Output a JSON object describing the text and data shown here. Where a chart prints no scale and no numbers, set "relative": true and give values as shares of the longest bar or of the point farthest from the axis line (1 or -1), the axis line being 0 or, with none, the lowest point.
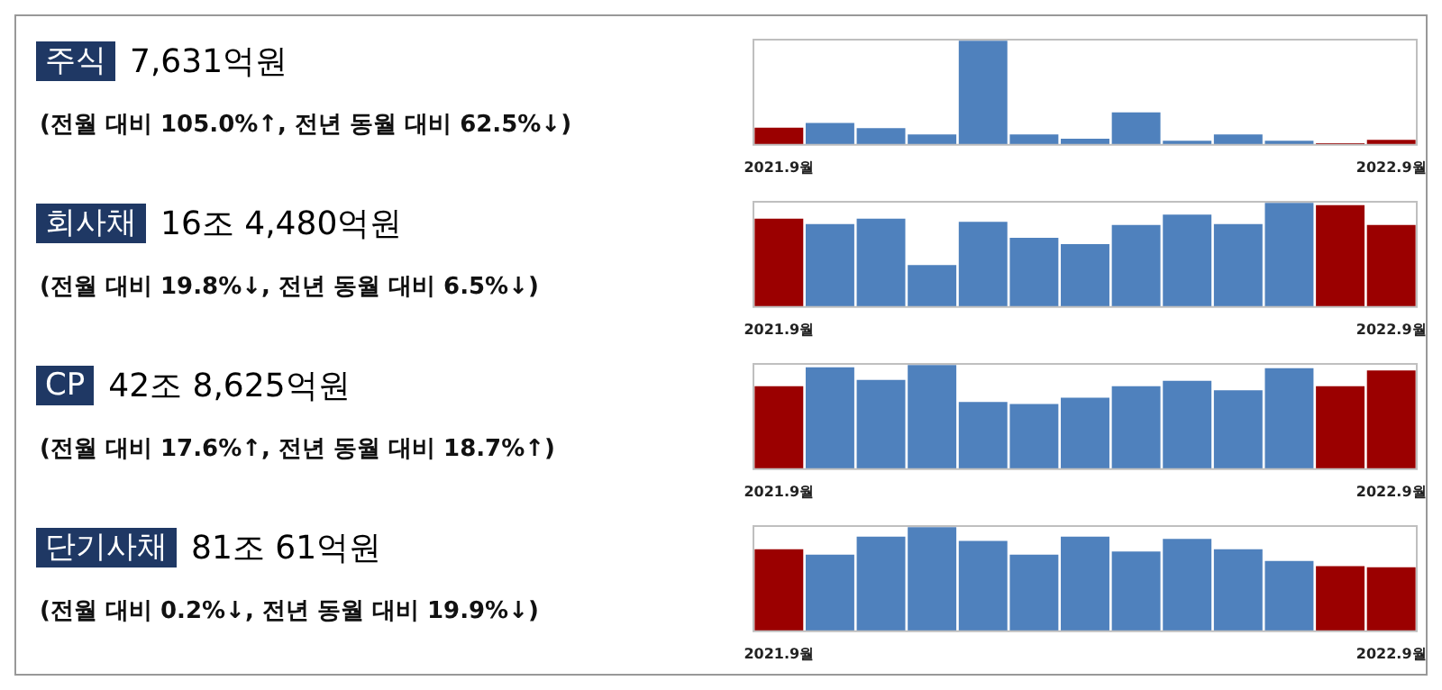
{
  "chart_data": [
    {
      "type": "bar",
      "annotations": [
        "주식",
        "7,631억원",
        "(전월 대비 105.0%↑, 전년 동월 대비 62.5%↓)"
      ],
      "categories": [
        "2021.9월",
        null,
        null,
        null,
        null,
        null,
        null,
        null,
        null,
        null,
        null,
        null,
        "2022.9월"
      ],
      "relative": true,
      "grid": false,
      "legend": false,
      "series": [
        {
          "values": [
            0.175,
            0.22,
            0.17,
            0.11,
            1,
            0.11,
            0.07,
            0.32,
            0.05,
            0.11,
            0.05,
            0.02,
            0.06
          ],
          "colors": [
            "#9b0000",
            "#4f81bd",
            "#4f81bd",
            "#4f81bd",
            "#4f81bd",
            "#4f81bd",
            "#4f81bd",
            "#4f81bd",
            "#4f81bd",
            "#4f81bd",
            "#4f81bd",
            "#9b0000",
            "#9b0000"
          ]
        }
      ]
    },
    {
      "type": "bar",
      "annotations": [
        "회사채",
        "16조 4,480억원",
        "(전월 대비 19.8%↓, 전년 동월 대비 6.5%↓)"
      ],
      "categories": [
        "2021.9월",
        null,
        null,
        null,
        null,
        null,
        null,
        null,
        null,
        null,
        null,
        null,
        "2022.9월"
      ],
      "relative": true,
      "grid": false,
      "legend": false,
      "series": [
        {
          "values": [
            0.85,
            0.8,
            0.85,
            0.41,
            0.82,
            0.67,
            0.61,
            0.79,
            0.89,
            0.8,
            1,
            0.98,
            0.79
          ],
          "colors": [
            "#9b0000",
            "#4f81bd",
            "#4f81bd",
            "#4f81bd",
            "#4f81bd",
            "#4f81bd",
            "#4f81bd",
            "#4f81bd",
            "#4f81bd",
            "#4f81bd",
            "#4f81bd",
            "#9b0000",
            "#9b0000"
          ]
        }
      ]
    },
    {
      "type": "bar",
      "annotations": [
        "CP",
        "42조 8,625억원",
        "(전월 대비 17.6%↑, 전년 동월 대비 18.7%↑)"
      ],
      "categories": [
        "2021.9월",
        null,
        null,
        null,
        null,
        null,
        null,
        null,
        null,
        null,
        null,
        null,
        "2022.9월"
      ],
      "relative": true,
      "grid": false,
      "legend": false,
      "series": [
        {
          "values": [
            0.8,
            0.98,
            0.86,
            1,
            0.65,
            0.63,
            0.69,
            0.8,
            0.85,
            0.76,
            0.97,
            0.8,
            0.95
          ],
          "colors": [
            "#9b0000",
            "#4f81bd",
            "#4f81bd",
            "#4f81bd",
            "#4f81bd",
            "#4f81bd",
            "#4f81bd",
            "#4f81bd",
            "#4f81bd",
            "#4f81bd",
            "#4f81bd",
            "#9b0000",
            "#9b0000"
          ]
        }
      ]
    },
    {
      "type": "bar",
      "annotations": [
        "단기사채",
        "81조 61억원",
        "(전월 대비 0.2%↓, 전년 동월 대비 19.9%↓)"
      ],
      "categories": [
        "2021.9월",
        null,
        null,
        null,
        null,
        null,
        null,
        null,
        null,
        null,
        null,
        null,
        "2022.9월"
      ],
      "relative": true,
      "grid": false,
      "legend": false,
      "series": [
        {
          "values": [
            0.79,
            0.74,
            0.91,
            1,
            0.87,
            0.74,
            0.91,
            0.77,
            0.89,
            0.79,
            0.68,
            0.63,
            0.62
          ],
          "colors": [
            "#9b0000",
            "#4f81bd",
            "#4f81bd",
            "#4f81bd",
            "#4f81bd",
            "#4f81bd",
            "#4f81bd",
            "#4f81bd",
            "#4f81bd",
            "#4f81bd",
            "#4f81bd",
            "#9b0000",
            "#9b0000"
          ]
        }
      ]
    }
  ]
}
